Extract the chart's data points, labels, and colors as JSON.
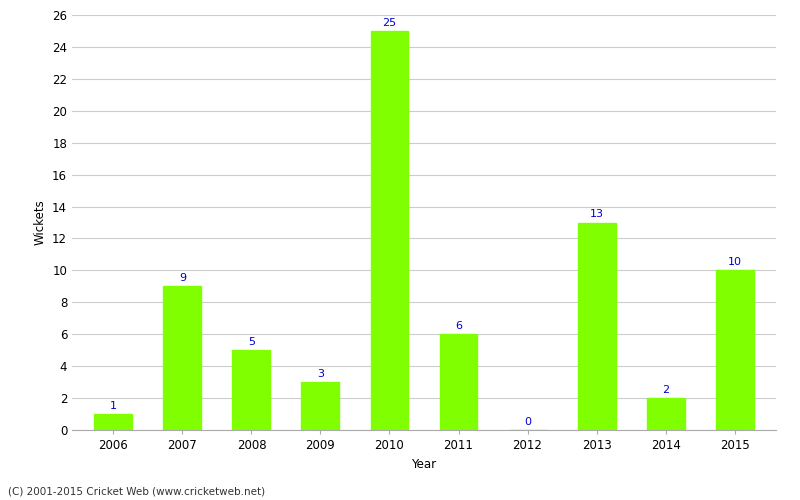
{
  "years": [
    "2006",
    "2007",
    "2008",
    "2009",
    "2010",
    "2011",
    "2012",
    "2013",
    "2014",
    "2015"
  ],
  "wickets": [
    1,
    9,
    5,
    3,
    25,
    6,
    0,
    13,
    2,
    10
  ],
  "bar_color": "#7fff00",
  "bar_edge_color": "#7fff00",
  "label_color": "#0000cc",
  "xlabel": "Year",
  "ylabel": "Wickets",
  "ylim": [
    0,
    26
  ],
  "yticks": [
    0,
    2,
    4,
    6,
    8,
    10,
    12,
    14,
    16,
    18,
    20,
    22,
    24,
    26
  ],
  "footer": "(C) 2001-2015 Cricket Web (www.cricketweb.net)",
  "background_color": "#ffffff",
  "grid_color": "#cccccc",
  "label_fontsize": 8,
  "axis_fontsize": 8.5,
  "footer_fontsize": 7.5
}
